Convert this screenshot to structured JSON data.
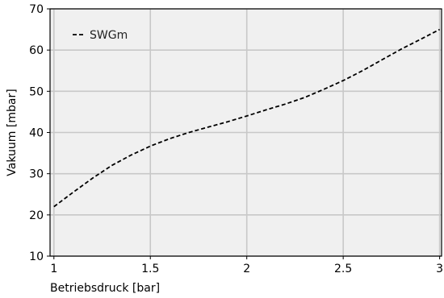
{
  "chart_data": {
    "type": "line",
    "title": "",
    "xlabel": "Betriebsdruck [bar]",
    "ylabel": "Vakuum [mbar]",
    "xlim": [
      0.98,
      3.01
    ],
    "ylim": [
      10,
      70
    ],
    "xticks": [
      1,
      1.5,
      2,
      2.5,
      3
    ],
    "xtick_labels": [
      "1",
      "1.5",
      "2",
      "2.5",
      "3"
    ],
    "yticks": [
      10,
      20,
      30,
      40,
      50,
      60,
      70
    ],
    "ytick_labels": [
      "10",
      "20",
      "30",
      "40",
      "50",
      "60",
      "70"
    ],
    "grid": true,
    "legend_position": "top-left",
    "series": [
      {
        "name": "SWGm",
        "line_style": "dashed",
        "color": "#000000",
        "x": [
          1.0,
          1.1,
          1.2,
          1.3,
          1.4,
          1.5,
          1.6,
          1.7,
          1.8,
          1.9,
          2.0,
          2.1,
          2.2,
          2.3,
          2.4,
          2.5,
          2.6,
          2.7,
          2.8,
          2.9,
          3.0
        ],
        "y": [
          22.0,
          25.5,
          28.9,
          32.0,
          34.5,
          36.7,
          38.5,
          40.0,
          41.3,
          42.6,
          44.0,
          45.5,
          46.9,
          48.5,
          50.5,
          52.6,
          55.0,
          57.6,
          60.2,
          62.6,
          65.0
        ]
      }
    ]
  },
  "colors": {
    "plot_background": "#f0f0f0",
    "grid": "#c8c8c8",
    "axes": "#000000"
  }
}
